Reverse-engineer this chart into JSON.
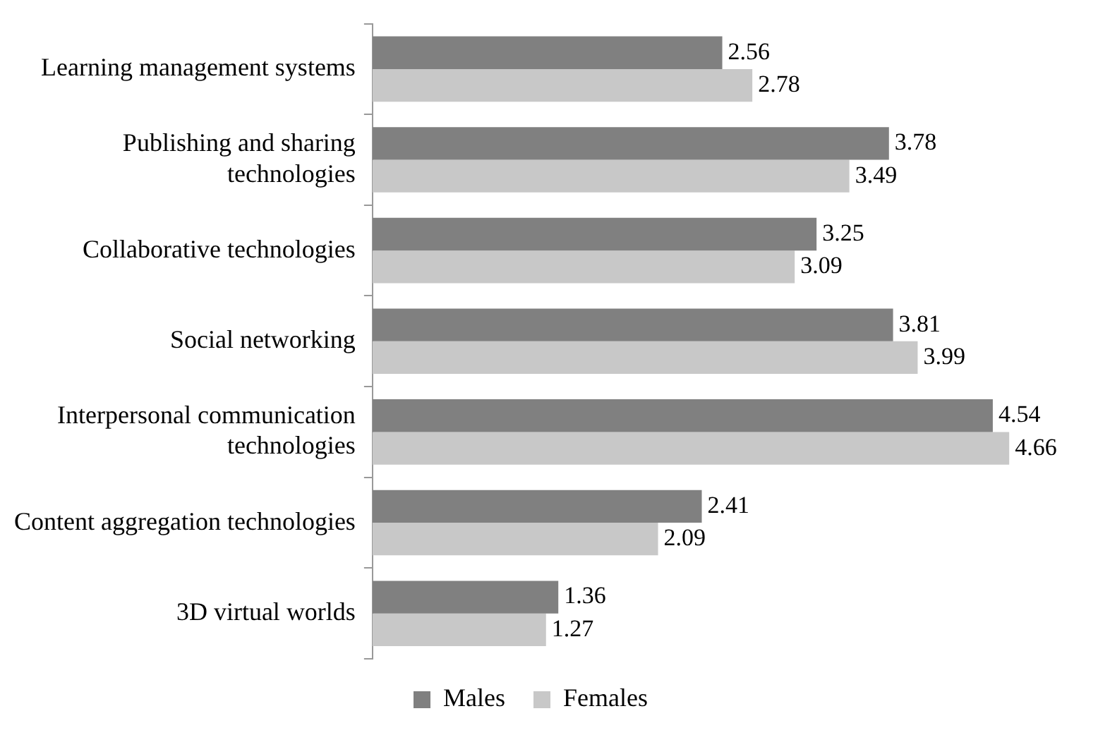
{
  "chart_data": {
    "type": "bar",
    "orientation": "horizontal",
    "categories": [
      "Learning management systems",
      "Publishing and sharing technologies",
      "Collaborative technologies",
      "Social networking",
      "Interpersonal communication technologies",
      "Content aggregation technologies",
      "3D virtual worlds"
    ],
    "series": [
      {
        "name": "Males",
        "color": "#808080",
        "values": [
          2.56,
          3.78,
          3.25,
          3.81,
          4.54,
          2.41,
          1.36
        ]
      },
      {
        "name": "Females",
        "color": "#c8c8c8",
        "values": [
          2.78,
          3.49,
          3.09,
          3.99,
          4.66,
          2.09,
          1.27
        ]
      }
    ],
    "data_labels": true,
    "legend": "bottom",
    "grid": false
  }
}
